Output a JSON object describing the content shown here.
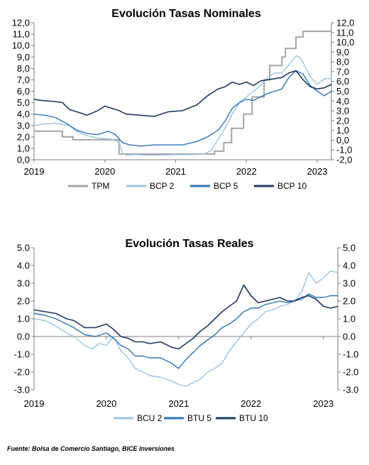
{
  "source": "Fuente: Bolsa de Comercio Santiago, BICE Inversiones",
  "chart_data": [
    {
      "type": "line",
      "title": "Evolución Tasas Nominales",
      "xlabel": "",
      "ylabel": "",
      "x_ticks": [
        "2019",
        "2020",
        "2021",
        "2022",
        "2023"
      ],
      "y_left_ticks": [
        "0,0",
        "1,0",
        "2,0",
        "3,0",
        "4,0",
        "5,0",
        "6,0",
        "7,0",
        "8,0",
        "9,0",
        "10,0",
        "11,0",
        "12,0"
      ],
      "y_right_ticks": [
        "-2,0",
        "-1,0",
        "0,0",
        "1,0",
        "2,0",
        "3,0",
        "4,0",
        "5,0",
        "6,0",
        "7,0",
        "8,0",
        "9,0",
        "10,0",
        "11,0",
        "12,0"
      ],
      "ylim_left": [
        0,
        12
      ],
      "ylim_right": [
        -2,
        12
      ],
      "xlim": [
        2019.0,
        2023.2
      ],
      "grid": false,
      "legend_position": "bottom",
      "series": [
        {
          "name": "TPM",
          "color": "#a5a5a5",
          "width": 2,
          "axis": "left",
          "x": [
            2019.0,
            2019.4,
            2019.4,
            2019.55,
            2019.55,
            2019.83,
            2019.83,
            2020.2,
            2020.2,
            2021.55,
            2021.55,
            2021.68,
            2021.68,
            2021.79,
            2021.79,
            2021.96,
            2021.96,
            2022.08,
            2022.08,
            2022.25,
            2022.25,
            2022.33,
            2022.33,
            2022.5,
            2022.5,
            2022.55,
            2022.55,
            2022.7,
            2022.7,
            2022.8,
            2022.8,
            2023.2
          ],
          "y": [
            2.5,
            2.5,
            2.0,
            2.0,
            1.75,
            1.75,
            1.75,
            1.75,
            0.5,
            0.5,
            0.75,
            0.75,
            1.5,
            1.5,
            2.75,
            2.75,
            4.0,
            4.0,
            5.5,
            5.5,
            7.0,
            7.0,
            8.25,
            8.25,
            9.0,
            9.0,
            9.75,
            9.75,
            10.75,
            10.75,
            11.25,
            11.25
          ]
        },
        {
          "name": "BCP 2",
          "color": "#9dc3e6",
          "width": 1.4,
          "axis": "left",
          "x": [
            2019.0,
            2019.1,
            2019.3,
            2019.5,
            2019.6,
            2019.75,
            2019.9,
            2020.1,
            2020.2,
            2020.25,
            2020.3,
            2020.4,
            2020.6,
            2020.8,
            2021.0,
            2021.2,
            2021.4,
            2021.5,
            2021.6,
            2021.7,
            2021.8,
            2021.9,
            2022.0,
            2022.1,
            2022.2,
            2022.3,
            2022.4,
            2022.5,
            2022.6,
            2022.7,
            2022.75,
            2022.8,
            2022.9,
            2023.0,
            2023.1,
            2023.2
          ],
          "y": [
            3.0,
            3.1,
            3.2,
            3.0,
            2.5,
            2.1,
            1.9,
            1.8,
            1.5,
            0.6,
            0.4,
            0.45,
            0.4,
            0.4,
            0.45,
            0.45,
            0.5,
            0.8,
            1.8,
            2.8,
            4.0,
            5.0,
            5.5,
            6.0,
            6.5,
            7.2,
            7.6,
            7.6,
            8.3,
            9.1,
            9.0,
            8.5,
            7.3,
            6.6,
            7.1,
            7.1
          ]
        },
        {
          "name": "BCP 5",
          "color": "#2e75b6",
          "width": 1.4,
          "axis": "left",
          "x": [
            2019.0,
            2019.15,
            2019.3,
            2019.45,
            2019.6,
            2019.75,
            2019.9,
            2020.05,
            2020.15,
            2020.25,
            2020.35,
            2020.5,
            2020.7,
            2020.9,
            2021.1,
            2021.3,
            2021.45,
            2021.6,
            2021.7,
            2021.8,
            2021.9,
            2022.0,
            2022.1,
            2022.2,
            2022.3,
            2022.4,
            2022.5,
            2022.6,
            2022.7,
            2022.8,
            2022.9,
            2023.0,
            2023.1,
            2023.2
          ],
          "y": [
            4.0,
            3.9,
            3.7,
            3.2,
            2.6,
            2.3,
            2.2,
            2.5,
            2.2,
            1.5,
            1.3,
            1.2,
            1.3,
            1.3,
            1.3,
            1.6,
            2.0,
            2.6,
            3.4,
            4.5,
            5.0,
            5.3,
            5.2,
            5.5,
            5.8,
            6.0,
            6.2,
            7.2,
            7.8,
            7.5,
            6.5,
            6.0,
            5.6,
            6.0
          ]
        },
        {
          "name": "BCP 10",
          "color": "#1f3864",
          "width": 1.6,
          "axis": "left",
          "x": [
            2019.0,
            2019.1,
            2019.3,
            2019.4,
            2019.5,
            2019.6,
            2019.75,
            2019.9,
            2020.0,
            2020.1,
            2020.2,
            2020.3,
            2020.5,
            2020.7,
            2020.9,
            2021.1,
            2021.3,
            2021.45,
            2021.6,
            2021.7,
            2021.8,
            2021.9,
            2022.0,
            2022.1,
            2022.2,
            2022.3,
            2022.4,
            2022.5,
            2022.6,
            2022.7,
            2022.8,
            2022.9,
            2023.0,
            2023.1,
            2023.2
          ],
          "y": [
            5.3,
            5.2,
            5.1,
            5.0,
            4.4,
            4.2,
            3.9,
            4.3,
            4.7,
            4.5,
            4.3,
            4.0,
            3.9,
            3.8,
            4.2,
            4.3,
            4.8,
            5.6,
            6.2,
            6.4,
            6.8,
            6.6,
            6.8,
            6.5,
            6.9,
            7.0,
            7.1,
            7.2,
            7.6,
            7.8,
            7.0,
            6.4,
            6.2,
            6.3,
            6.6
          ]
        }
      ]
    },
    {
      "type": "line",
      "title": "Evolución Tasas Reales",
      "xlabel": "",
      "ylabel": "",
      "x_ticks": [
        "2019",
        "2020",
        "2021",
        "2022",
        "2023"
      ],
      "y_left_ticks": [
        "-3.0",
        "-2.0",
        "-1.0",
        "0.0",
        "1.0",
        "2.0",
        "3.0",
        "4.0",
        "5.0"
      ],
      "y_right_ticks": [
        "-3.0",
        "-2.0",
        "-1.0",
        "0.0",
        "1.0",
        "2.0",
        "3.0",
        "4.0",
        "5.0"
      ],
      "ylim_left": [
        -3,
        5
      ],
      "ylim_right": [
        -3,
        5
      ],
      "xlim": [
        2019.0,
        2023.2
      ],
      "grid": false,
      "legend_position": "bottom",
      "series": [
        {
          "name": "BCU 2",
          "color": "#9dc3e6",
          "width": 1.4,
          "axis": "left",
          "x": [
            2019.0,
            2019.15,
            2019.3,
            2019.45,
            2019.55,
            2019.7,
            2019.8,
            2019.9,
            2020.0,
            2020.1,
            2020.2,
            2020.3,
            2020.4,
            2020.5,
            2020.6,
            2020.75,
            2020.9,
            2021.0,
            2021.1,
            2021.2,
            2021.3,
            2021.4,
            2021.5,
            2021.6,
            2021.7,
            2021.8,
            2021.9,
            2022.0,
            2022.1,
            2022.2,
            2022.3,
            2022.4,
            2022.5,
            2022.6,
            2022.7,
            2022.8,
            2022.9,
            2023.0,
            2023.1,
            2023.2
          ],
          "y": [
            1.0,
            0.9,
            0.6,
            0.2,
            0.0,
            -0.5,
            -0.7,
            -0.4,
            -0.5,
            0.0,
            -0.8,
            -1.2,
            -1.8,
            -2.0,
            -2.2,
            -2.3,
            -2.5,
            -2.7,
            -2.8,
            -2.6,
            -2.4,
            -2.0,
            -1.8,
            -1.5,
            -0.8,
            -0.3,
            0.2,
            0.7,
            1.0,
            1.4,
            1.5,
            1.7,
            1.8,
            2.0,
            2.5,
            3.6,
            3.0,
            3.3,
            3.7,
            3.6
          ]
        },
        {
          "name": "BTU 5",
          "color": "#2e75b6",
          "width": 1.4,
          "axis": "left",
          "x": [
            2019.0,
            2019.15,
            2019.3,
            2019.45,
            2019.55,
            2019.7,
            2019.85,
            2020.0,
            2020.1,
            2020.2,
            2020.3,
            2020.4,
            2020.5,
            2020.6,
            2020.75,
            2020.9,
            2021.0,
            2021.1,
            2021.2,
            2021.3,
            2021.4,
            2021.5,
            2021.6,
            2021.7,
            2021.8,
            2021.9,
            2022.0,
            2022.1,
            2022.2,
            2022.3,
            2022.4,
            2022.5,
            2022.6,
            2022.7,
            2022.8,
            2022.9,
            2023.0,
            2023.1,
            2023.2
          ],
          "y": [
            1.3,
            1.2,
            1.0,
            0.7,
            0.5,
            0.1,
            0.0,
            0.2,
            -0.1,
            -0.5,
            -0.7,
            -1.1,
            -1.1,
            -1.2,
            -1.2,
            -1.5,
            -1.8,
            -1.3,
            -0.9,
            -0.5,
            -0.2,
            0.1,
            0.5,
            0.7,
            1.0,
            1.4,
            1.6,
            1.6,
            1.8,
            1.9,
            2.0,
            1.9,
            2.0,
            2.1,
            2.4,
            2.2,
            2.2,
            2.3,
            2.3
          ]
        },
        {
          "name": "BTU 10",
          "color": "#1f3864",
          "width": 1.6,
          "axis": "left",
          "x": [
            2019.0,
            2019.15,
            2019.3,
            2019.45,
            2019.55,
            2019.7,
            2019.85,
            2020.0,
            2020.1,
            2020.2,
            2020.3,
            2020.4,
            2020.5,
            2020.6,
            2020.75,
            2020.9,
            2021.0,
            2021.1,
            2021.2,
            2021.3,
            2021.4,
            2021.5,
            2021.6,
            2021.7,
            2021.8,
            2021.9,
            2022.0,
            2022.1,
            2022.2,
            2022.3,
            2022.4,
            2022.5,
            2022.6,
            2022.7,
            2022.8,
            2022.9,
            2023.0,
            2023.1,
            2023.2
          ],
          "y": [
            1.5,
            1.4,
            1.3,
            1.0,
            0.9,
            0.5,
            0.5,
            0.7,
            0.4,
            0.0,
            -0.1,
            -0.3,
            -0.3,
            -0.4,
            -0.3,
            -0.6,
            -0.7,
            -0.4,
            -0.1,
            0.3,
            0.6,
            1.0,
            1.4,
            1.7,
            2.0,
            2.9,
            2.3,
            1.9,
            2.0,
            2.1,
            2.2,
            2.0,
            2.0,
            2.2,
            2.3,
            2.1,
            1.7,
            1.6,
            1.7
          ]
        }
      ]
    }
  ]
}
